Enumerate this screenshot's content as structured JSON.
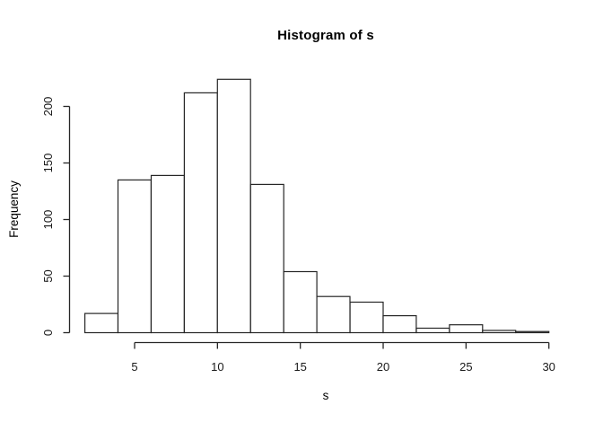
{
  "chart_data": {
    "type": "bar",
    "subtype": "histogram",
    "title": "Histogram of s",
    "xlabel": "s",
    "ylabel": "Frequency",
    "bin_edges": [
      2,
      4,
      6,
      8,
      10,
      12,
      14,
      16,
      18,
      20,
      22,
      24,
      26,
      28,
      30
    ],
    "frequencies": [
      17,
      135,
      139,
      212,
      224,
      131,
      54,
      32,
      27,
      15,
      4,
      7,
      2,
      1
    ],
    "x_ticks": [
      5,
      10,
      15,
      20,
      25,
      30
    ],
    "y_ticks": [
      0,
      50,
      100,
      150,
      200
    ],
    "xlim": [
      2,
      30
    ],
    "ylim": [
      0,
      224
    ],
    "grid": false,
    "legend": null,
    "colors": {
      "background": "#ffffff",
      "bar_fill": "#ffffff",
      "bar_stroke": "#262626",
      "axis": "#262626",
      "text": "#000000"
    }
  }
}
